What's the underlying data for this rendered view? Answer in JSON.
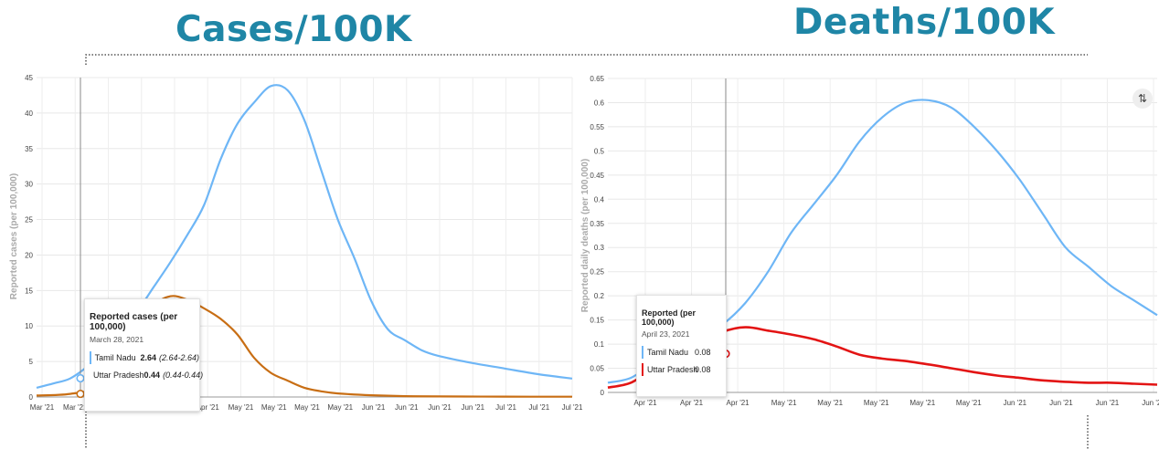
{
  "titles": {
    "left": "Cases/100K",
    "right": "Deaths/100K"
  },
  "colors": {
    "title": "#1f86a6",
    "blue": "#6eb6f6",
    "orange": "#c86e14",
    "red": "#e31414"
  },
  "chart_data": [
    {
      "type": "line",
      "ylabel": "Reported cases (per 100,000)",
      "ylim": [
        0,
        45
      ],
      "yticks": [
        0,
        5,
        10,
        15,
        20,
        25,
        30,
        35,
        40,
        45
      ],
      "xtick_labels": [
        "Mar '21",
        "Mar '21",
        "Apr '21",
        "Apr '21",
        "Apr '21",
        "Apr '21",
        "May '21",
        "May '21",
        "May '21",
        "May '21",
        "Jun '21",
        "Jun '21",
        "Jun '21",
        "Jun '21",
        "Jul '21",
        "Jul '21",
        "Jul '21"
      ],
      "series": [
        {
          "name": "Tamil Nadu",
          "x": [
            0,
            0.5,
            1,
            1.5,
            2,
            2.5,
            3,
            3.5,
            4,
            4.5,
            5,
            5.5,
            6,
            6.5,
            7,
            7.5,
            8,
            8.5,
            9,
            9.5,
            10,
            10.5,
            11,
            11.5,
            12,
            13,
            14,
            15,
            16
          ],
          "values": [
            1.3,
            1.9,
            2.6,
            4.2,
            6.3,
            9.0,
            12.0,
            15.5,
            19.0,
            22.8,
            27.0,
            33.5,
            38.5,
            41.5,
            43.8,
            43.2,
            39.0,
            32.0,
            25.0,
            19.5,
            13.5,
            9.5,
            8.0,
            6.6,
            5.8,
            4.8,
            4.0,
            3.2,
            2.6
          ]
        },
        {
          "name": "Uttar Pradesh",
          "x": [
            0,
            1,
            2,
            2.5,
            3,
            3.5,
            4,
            4.5,
            5,
            5.5,
            6,
            6.5,
            7,
            7.5,
            8,
            8.5,
            9,
            10,
            11,
            12,
            14,
            16
          ],
          "values": [
            0.2,
            0.44,
            1.5,
            4.5,
            9.0,
            12.8,
            14.2,
            13.7,
            12.5,
            11.0,
            8.8,
            5.5,
            3.4,
            2.3,
            1.3,
            0.8,
            0.5,
            0.25,
            0.12,
            0.08,
            0.05,
            0.04
          ]
        }
      ],
      "tooltip": {
        "title": "Reported cases (per 100,000)",
        "date": "March 28, 2021",
        "rows": [
          {
            "name": "Tamil Nadu",
            "value": "2.64",
            "range": "(2.64-2.64)"
          },
          {
            "name": "Uttar Pradesh",
            "value": "0.44",
            "range": "(0.44-0.44)"
          }
        ]
      }
    },
    {
      "type": "line",
      "ylabel": "Reported daily deaths (per 100,000)",
      "ylim": [
        0,
        0.65
      ],
      "yticks": [
        0,
        0.05,
        0.1,
        0.15,
        0.2,
        0.25,
        0.3,
        0.35,
        0.4,
        0.45,
        0.5,
        0.55,
        0.6,
        0.65
      ],
      "xtick_labels": [
        "Apr '21",
        "Apr '21",
        "Apr '21",
        "May '21",
        "May '21",
        "May '21",
        "May '21",
        "May '21",
        "Jun '21",
        "Jun '21",
        "Jun '21",
        "Jun '21"
      ],
      "series": [
        {
          "name": "Tamil Nadu",
          "x": [
            0,
            0.5,
            1,
            1.5,
            2,
            2.5,
            3,
            3.5,
            4,
            4.5,
            5,
            5.5,
            6,
            6.5,
            7,
            7.5,
            8,
            8.5,
            9,
            9.5,
            10,
            10.5,
            11,
            11.5,
            12
          ],
          "values": [
            0.02,
            0.03,
            0.06,
            0.08,
            0.11,
            0.14,
            0.185,
            0.25,
            0.33,
            0.39,
            0.45,
            0.52,
            0.57,
            0.6,
            0.605,
            0.59,
            0.55,
            0.5,
            0.44,
            0.37,
            0.3,
            0.26,
            0.22,
            0.19,
            0.16
          ]
        },
        {
          "name": "Uttar Pradesh",
          "x": [
            0,
            0.5,
            1,
            1.5,
            2,
            2.5,
            3,
            3.5,
            4,
            4.5,
            5,
            5.5,
            6,
            6.5,
            7,
            7.5,
            8,
            8.5,
            9,
            9.5,
            10,
            10.5,
            11,
            11.5,
            12
          ],
          "values": [
            0.01,
            0.02,
            0.05,
            0.08,
            0.1,
            0.125,
            0.135,
            0.128,
            0.12,
            0.11,
            0.095,
            0.078,
            0.07,
            0.065,
            0.058,
            0.05,
            0.042,
            0.035,
            0.03,
            0.025,
            0.022,
            0.02,
            0.02,
            0.018,
            0.016
          ]
        }
      ],
      "tooltip": {
        "title": "Reported (per 100,000)",
        "date": "April 23, 2021",
        "rows": [
          {
            "name": "Tamil Nadu",
            "value": "0.08",
            "range": ""
          },
          {
            "name": "Uttar Pradesh",
            "value": "0.08",
            "range": ""
          }
        ]
      }
    }
  ]
}
